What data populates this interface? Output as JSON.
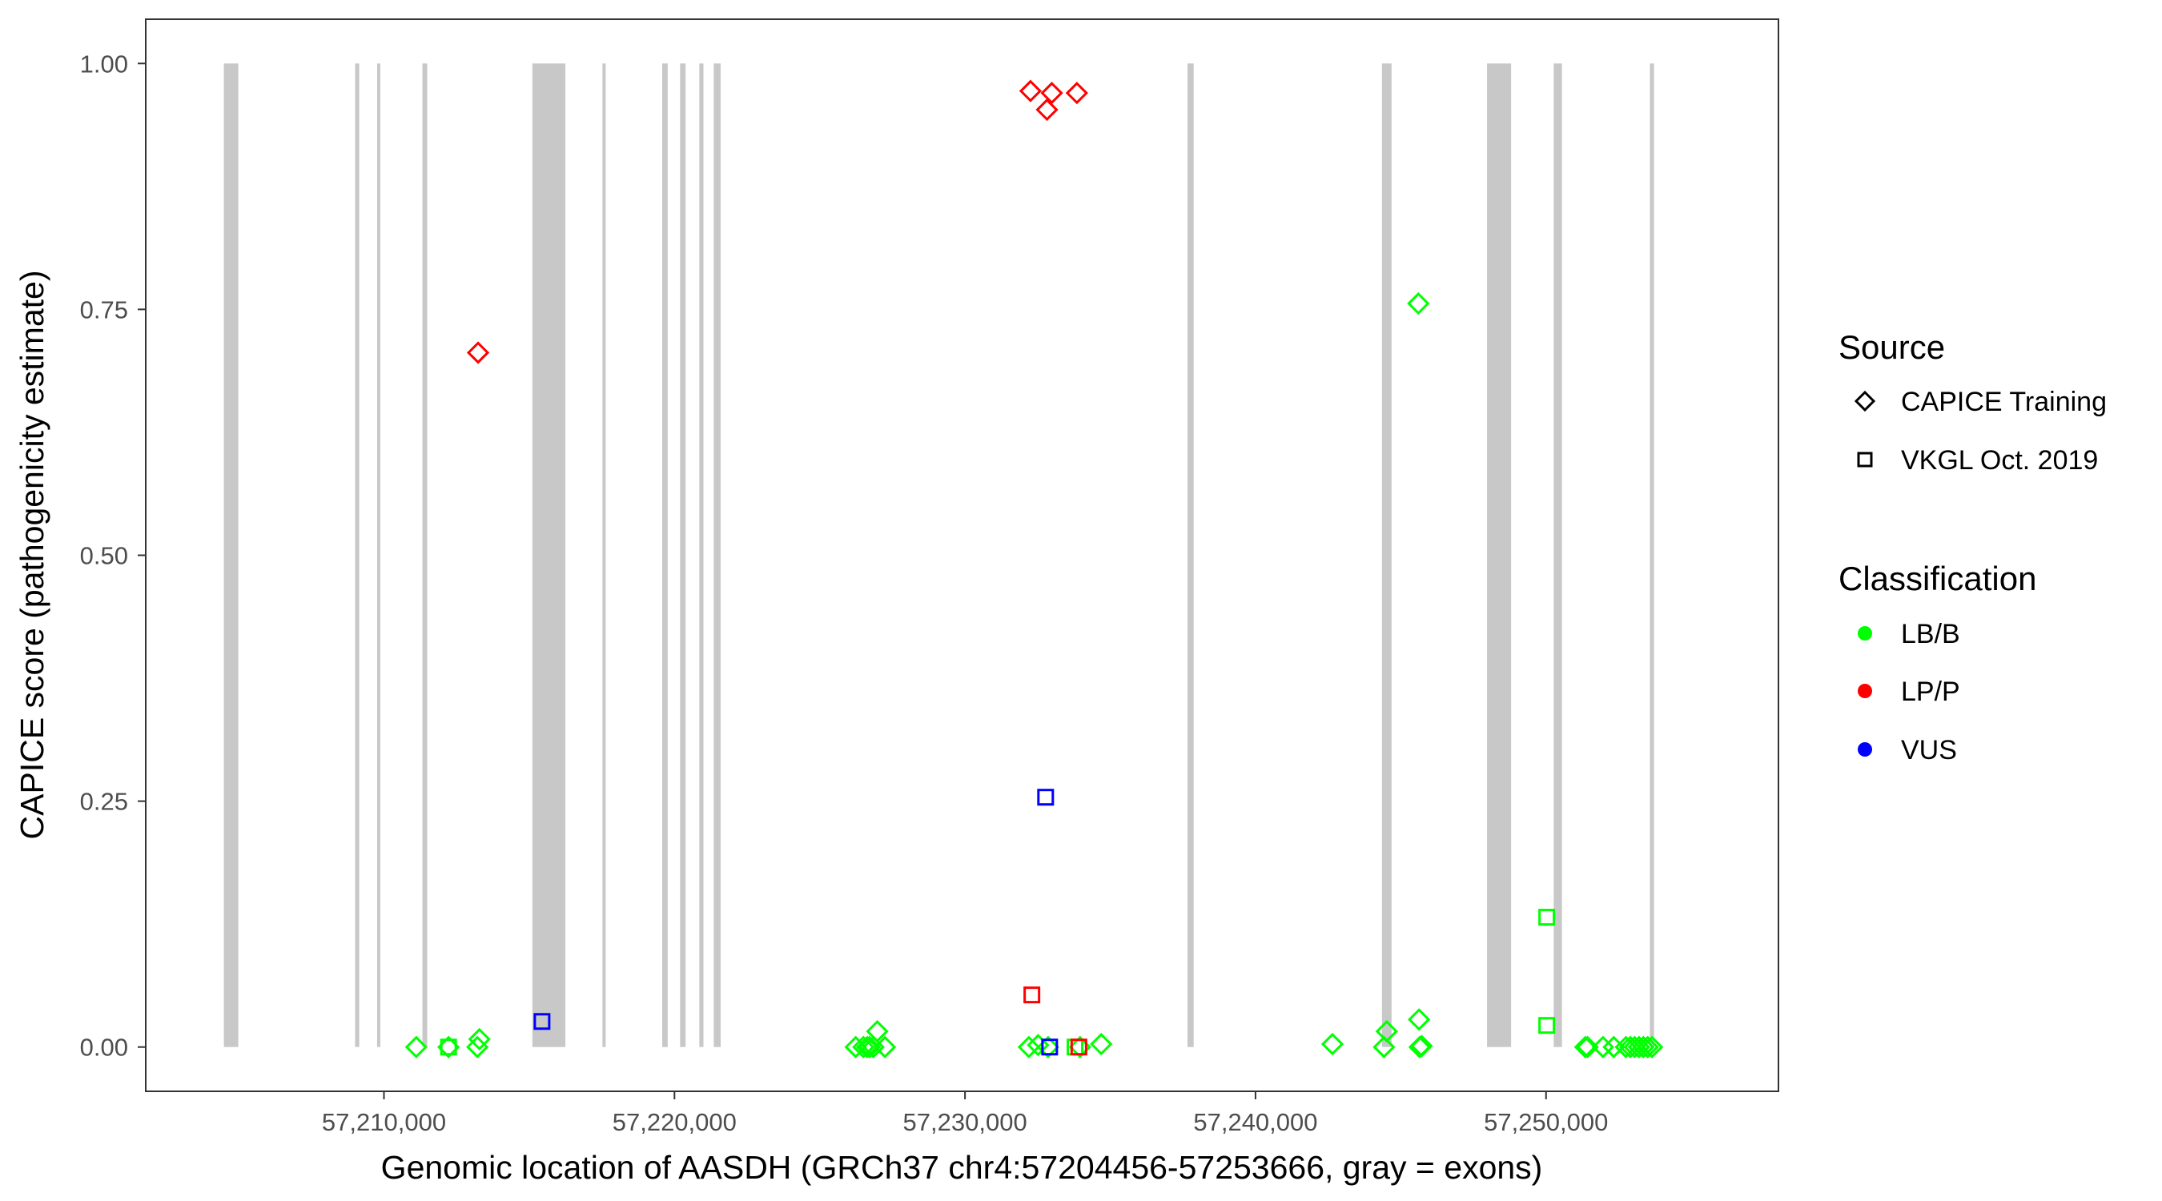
{
  "chart_data": {
    "type": "scatter",
    "title": "",
    "xlabel": "Genomic location of AASDH (GRCh37 chr4:57204456-57253666, gray = exons)",
    "ylabel": "CAPICE score (pathogenicity estimate)",
    "xlim": [
      57201800,
      57258000
    ],
    "ylim": [
      -0.045,
      1.045
    ],
    "x_ticks": [
      57210000,
      57220000,
      57230000,
      57240000,
      57250000
    ],
    "x_tick_labels": [
      "57,210,000",
      "57,220,000",
      "57,230,000",
      "57,240,000",
      "57,250,000"
    ],
    "y_ticks": [
      0,
      0.25,
      0.5,
      0.75,
      1
    ],
    "y_tick_labels": [
      "0.00",
      "0.25",
      "0.50",
      "0.75",
      "1.00"
    ],
    "grid": false,
    "exon_color": "#c8c8c8",
    "exons": [
      [
        57204490,
        57204986
      ],
      [
        57209007,
        57209149
      ],
      [
        57209764,
        57209858
      ],
      [
        57211324,
        57211490
      ],
      [
        57215108,
        57216244
      ],
      [
        57217521,
        57217615
      ],
      [
        57219578,
        57219767
      ],
      [
        57220193,
        57220382
      ],
      [
        57220855,
        57220997
      ],
      [
        57221352,
        57221589
      ],
      [
        57237659,
        57237871
      ],
      [
        57244352,
        57244683
      ],
      [
        57247970,
        57248798
      ],
      [
        57250264,
        57250548
      ],
      [
        57253575,
        57253717
      ]
    ],
    "legend": {
      "placement": "right",
      "source": {
        "title": "Source",
        "items": [
          {
            "label": "CAPICE Training",
            "shape": "diamond"
          },
          {
            "label": "VKGL Oct. 2019",
            "shape": "square"
          }
        ]
      },
      "classification": {
        "title": "Classification",
        "items": [
          {
            "label": "LB/B",
            "color": "#00ff00"
          },
          {
            "label": "LP/P",
            "color": "#ff0000"
          },
          {
            "label": "VUS",
            "color": "#0000ff"
          }
        ]
      }
    },
    "points": [
      {
        "x": 57213240,
        "y": 0.706,
        "source": "CAPICE Training",
        "class": "LP/P"
      },
      {
        "x": 57232255,
        "y": 0.972,
        "source": "CAPICE Training",
        "class": "LP/P"
      },
      {
        "x": 57232988,
        "y": 0.97,
        "source": "CAPICE Training",
        "class": "LP/P"
      },
      {
        "x": 57232822,
        "y": 0.953,
        "source": "CAPICE Training",
        "class": "LP/P"
      },
      {
        "x": 57233851,
        "y": 0.97,
        "source": "CAPICE Training",
        "class": "LP/P"
      },
      {
        "x": 57215440,
        "y": 0.026,
        "source": "VKGL Oct. 2019",
        "class": "VUS"
      },
      {
        "x": 57232775,
        "y": 0.254,
        "source": "VKGL Oct. 2019",
        "class": "VUS"
      },
      {
        "x": 57232302,
        "y": 0.053,
        "source": "VKGL Oct. 2019",
        "class": "LP/P"
      },
      {
        "x": 57211112,
        "y": 0.0,
        "source": "CAPICE Training",
        "class": "LB/B"
      },
      {
        "x": 57212223,
        "y": 0.0,
        "source": "CAPICE Training",
        "class": "LB/B"
      },
      {
        "x": 57212223,
        "y": 0.0,
        "source": "VKGL Oct. 2019",
        "class": "LB/B"
      },
      {
        "x": 57213216,
        "y": 0.0,
        "source": "CAPICE Training",
        "class": "LB/B"
      },
      {
        "x": 57213287,
        "y": 0.008,
        "source": "CAPICE Training",
        "class": "LB/B"
      },
      {
        "x": 57226238,
        "y": 0.0,
        "source": "CAPICE Training",
        "class": "LB/B"
      },
      {
        "x": 57226503,
        "y": 0.0,
        "source": "CAPICE Training",
        "class": "LB/B"
      },
      {
        "x": 57226636,
        "y": 0.0,
        "source": "CAPICE Training",
        "class": "LB/B"
      },
      {
        "x": 57226715,
        "y": 0.0,
        "source": "CAPICE Training",
        "class": "LB/B"
      },
      {
        "x": 57226848,
        "y": 0.0,
        "source": "CAPICE Training",
        "class": "LB/B"
      },
      {
        "x": 57226980,
        "y": 0.016,
        "source": "CAPICE Training",
        "class": "LB/B"
      },
      {
        "x": 57227245,
        "y": 0.0,
        "source": "CAPICE Training",
        "class": "LB/B"
      },
      {
        "x": 57232199,
        "y": 0.0,
        "source": "CAPICE Training",
        "class": "LB/B"
      },
      {
        "x": 57232517,
        "y": 0.002,
        "source": "CAPICE Training",
        "class": "LB/B"
      },
      {
        "x": 57232861,
        "y": 0.0,
        "source": "CAPICE Training",
        "class": "LB/B"
      },
      {
        "x": 57232914,
        "y": 0.0,
        "source": "VKGL Oct. 2019",
        "class": "VUS"
      },
      {
        "x": 57233788,
        "y": 0.0,
        "source": "VKGL Oct. 2019",
        "class": "LB/B"
      },
      {
        "x": 57233960,
        "y": 0.0,
        "source": "CAPICE Training",
        "class": "LB/B"
      },
      {
        "x": 57233920,
        "y": 0.0,
        "source": "VKGL Oct. 2019",
        "class": "LP/P"
      },
      {
        "x": 57234689,
        "y": 0.003,
        "source": "CAPICE Training",
        "class": "LB/B"
      },
      {
        "x": 57242649,
        "y": 0.003,
        "source": "CAPICE Training",
        "class": "LB/B"
      },
      {
        "x": 57244423,
        "y": 0.0,
        "source": "CAPICE Training",
        "class": "LB/B"
      },
      {
        "x": 57244517,
        "y": 0.016,
        "source": "CAPICE Training",
        "class": "LB/B"
      },
      {
        "x": 57245629,
        "y": 0.028,
        "source": "CAPICE Training",
        "class": "LB/B"
      },
      {
        "x": 57245650,
        "y": 0.0,
        "source": "CAPICE Training",
        "class": "LB/B"
      },
      {
        "x": 57245720,
        "y": 0.001,
        "source": "CAPICE Training",
        "class": "LB/B"
      },
      {
        "x": 57245605,
        "y": 0.756,
        "source": "CAPICE Training",
        "class": "LB/B"
      },
      {
        "x": 57250024,
        "y": 0.132,
        "source": "VKGL Oct. 2019",
        "class": "LB/B"
      },
      {
        "x": 57250024,
        "y": 0.022,
        "source": "VKGL Oct. 2019",
        "class": "LB/B"
      },
      {
        "x": 57251351,
        "y": 0.0,
        "source": "CAPICE Training",
        "class": "LB/B"
      },
      {
        "x": 57251430,
        "y": 0.0,
        "source": "CAPICE Training",
        "class": "LB/B"
      },
      {
        "x": 57251960,
        "y": 0.0,
        "source": "CAPICE Training",
        "class": "LB/B"
      },
      {
        "x": 57252331,
        "y": 0.0,
        "source": "CAPICE Training",
        "class": "LB/B"
      },
      {
        "x": 57252750,
        "y": 0.0,
        "source": "CAPICE Training",
        "class": "LB/B"
      },
      {
        "x": 57252900,
        "y": 0.0,
        "source": "CAPICE Training",
        "class": "LB/B"
      },
      {
        "x": 57253050,
        "y": 0.0,
        "source": "CAPICE Training",
        "class": "LB/B"
      },
      {
        "x": 57253200,
        "y": 0.0,
        "source": "CAPICE Training",
        "class": "LB/B"
      },
      {
        "x": 57253350,
        "y": 0.0,
        "source": "CAPICE Training",
        "class": "LB/B"
      },
      {
        "x": 57253500,
        "y": 0.0,
        "source": "CAPICE Training",
        "class": "LB/B"
      },
      {
        "x": 57253650,
        "y": 0.0,
        "source": "CAPICE Training",
        "class": "LB/B"
      }
    ]
  }
}
